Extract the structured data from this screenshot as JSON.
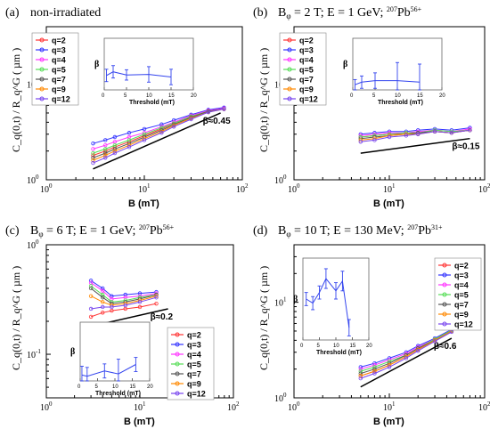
{
  "chart_data": [
    {
      "type": "line",
      "panel_label": "(a)",
      "title": "non-irradiated",
      "xlabel": "B (mT)",
      "ylabel": "C_q(0,t) / R_q^G ( µm )",
      "xscale": "log",
      "yscale": "log",
      "xlim": [
        1,
        100
      ],
      "ylim": [
        1,
        40
      ],
      "x_ticks": [
        "10^0",
        "10^1",
        "10^2"
      ],
      "y_ticks": [
        "10^0",
        "10^1"
      ],
      "legend_position": "upper-left",
      "x": [
        3,
        4,
        5,
        7,
        10,
        15,
        20,
        30,
        45,
        65
      ],
      "series": [
        {
          "name": "q=2",
          "color": "#ff3333",
          "values": [
            1.8,
            2.0,
            2.2,
            2.5,
            2.9,
            3.4,
            3.9,
            4.6,
            5.3,
            5.6
          ]
        },
        {
          "name": "q=3",
          "color": "#3333ff",
          "values": [
            2.4,
            2.6,
            2.8,
            3.1,
            3.4,
            3.8,
            4.2,
            4.8,
            5.4,
            5.7
          ]
        },
        {
          "name": "q=4",
          "color": "#ff33ff",
          "values": [
            2.1,
            2.3,
            2.5,
            2.8,
            3.1,
            3.6,
            4.0,
            4.7,
            5.3,
            5.6
          ]
        },
        {
          "name": "q=5",
          "color": "#55dd55",
          "values": [
            1.9,
            2.1,
            2.3,
            2.6,
            3.0,
            3.5,
            3.9,
            4.6,
            5.2,
            5.5
          ]
        },
        {
          "name": "q=7",
          "color": "#555555",
          "values": [
            1.7,
            1.9,
            2.1,
            2.4,
            2.8,
            3.3,
            3.8,
            4.5,
            5.2,
            5.5
          ]
        },
        {
          "name": "q=9",
          "color": "#ff8800",
          "values": [
            1.6,
            1.8,
            2.0,
            2.3,
            2.7,
            3.2,
            3.7,
            4.4,
            5.1,
            5.5
          ]
        },
        {
          "name": "q=12",
          "color": "#7744ee",
          "values": [
            1.5,
            1.7,
            1.9,
            2.2,
            2.6,
            3.1,
            3.6,
            4.3,
            5.1,
            5.5
          ]
        }
      ],
      "fit_line": {
        "x": [
          3,
          60
        ],
        "y": [
          1.3,
          5.0
        ],
        "label": "β≈0.45"
      },
      "inset": {
        "xlabel": "Threshold (mT)",
        "ylabel": "β",
        "xlim": [
          0,
          20
        ],
        "ylim": [
          0,
          1
        ],
        "x_ticks": [
          "0",
          "5",
          "10",
          "15",
          "20"
        ],
        "x": [
          0.5,
          2,
          5,
          10,
          15
        ],
        "y": [
          0.28,
          0.35,
          0.29,
          0.3,
          0.25
        ],
        "err": [
          0.12,
          0.12,
          0.1,
          0.15,
          0.15
        ]
      }
    },
    {
      "type": "line",
      "panel_label": "(b)",
      "title": "B_φ = 2 T; E = 1 GeV; 207Pb56+",
      "xlabel": "B (mT)",
      "ylabel": "C_q(0,t) / R_q^G ( µm )",
      "xscale": "log",
      "yscale": "log",
      "xlim": [
        1,
        100
      ],
      "ylim": [
        1,
        40
      ],
      "x_ticks": [
        "10^0",
        "10^1",
        "10^2"
      ],
      "y_ticks": [
        "10^0",
        "10^1"
      ],
      "legend_position": "upper-left",
      "x": [
        5,
        7,
        10,
        15,
        20,
        30,
        45,
        70
      ],
      "series": [
        {
          "name": "q=2",
          "color": "#ff3333",
          "values": [
            2.8,
            2.9,
            3.0,
            3.0,
            3.1,
            3.2,
            3.1,
            3.3
          ]
        },
        {
          "name": "q=3",
          "color": "#3333ff",
          "values": [
            3.0,
            3.1,
            3.2,
            3.2,
            3.3,
            3.4,
            3.3,
            3.5
          ]
        },
        {
          "name": "q=4",
          "color": "#ff33ff",
          "values": [
            2.9,
            3.0,
            3.1,
            3.1,
            3.2,
            3.3,
            3.2,
            3.4
          ]
        },
        {
          "name": "q=5",
          "color": "#55dd55",
          "values": [
            2.8,
            2.9,
            3.0,
            3.1,
            3.1,
            3.3,
            3.2,
            3.3
          ]
        },
        {
          "name": "q=7",
          "color": "#555555",
          "values": [
            2.7,
            2.8,
            2.9,
            3.0,
            3.1,
            3.2,
            3.1,
            3.3
          ]
        },
        {
          "name": "q=9",
          "color": "#ff8800",
          "values": [
            2.6,
            2.7,
            2.9,
            3.0,
            3.0,
            3.2,
            3.1,
            3.3
          ]
        },
        {
          "name": "q=12",
          "color": "#7744ee",
          "values": [
            2.5,
            2.6,
            2.8,
            2.9,
            3.0,
            3.2,
            3.1,
            3.3
          ]
        }
      ],
      "fit_line": {
        "x": [
          5,
          70
        ],
        "y": [
          1.9,
          2.7
        ],
        "label": "β≈0.15"
      },
      "inset": {
        "xlabel": "Threshold (mT)",
        "ylabel": "β",
        "xlim": [
          0,
          20
        ],
        "ylim": [
          0,
          1
        ],
        "x_ticks": [
          "0",
          "5",
          "10",
          "15",
          "20"
        ],
        "x": [
          0.5,
          2,
          5,
          10,
          15
        ],
        "y": [
          0.1,
          0.15,
          0.18,
          0.18,
          0.15
        ],
        "err": [
          0.1,
          0.12,
          0.15,
          0.35,
          0.35
        ]
      }
    },
    {
      "type": "line",
      "panel_label": "(c)",
      "title": "B_φ = 6 T; E = 1 GeV; 207Pb56+",
      "xlabel": "B (mT)",
      "ylabel": "C_q(0,t) / R_q^G ( µm )",
      "xscale": "log",
      "yscale": "log",
      "xlim": [
        1,
        100
      ],
      "ylim": [
        0.04,
        1
      ],
      "x_ticks": [
        "10^0",
        "10^1",
        "10^2"
      ],
      "y_ticks": [
        "10^-1"
      ],
      "legend_position": "lower-right",
      "x": [
        3,
        4,
        5,
        7,
        10,
        15
      ],
      "series": [
        {
          "name": "q=2",
          "color": "#ff3333",
          "values": [
            0.22,
            0.24,
            0.25,
            0.26,
            0.27,
            0.29
          ]
        },
        {
          "name": "q=3",
          "color": "#3333ff",
          "values": [
            0.47,
            0.4,
            0.34,
            0.35,
            0.36,
            0.37
          ]
        },
        {
          "name": "q=4",
          "color": "#ff33ff",
          "values": [
            0.45,
            0.38,
            0.32,
            0.33,
            0.34,
            0.36
          ]
        },
        {
          "name": "q=5",
          "color": "#55dd55",
          "values": [
            0.42,
            0.35,
            0.3,
            0.31,
            0.33,
            0.35
          ]
        },
        {
          "name": "q=7",
          "color": "#555555",
          "values": [
            0.4,
            0.33,
            0.29,
            0.3,
            0.32,
            0.35
          ]
        },
        {
          "name": "q=9",
          "color": "#ff8800",
          "values": [
            0.34,
            0.3,
            0.28,
            0.29,
            0.31,
            0.34
          ]
        },
        {
          "name": "q=12",
          "color": "#7744ee",
          "values": [
            0.26,
            0.27,
            0.27,
            0.28,
            0.3,
            0.33
          ]
        }
      ],
      "fit_line": {
        "x": [
          3,
          20
        ],
        "y": [
          0.18,
          0.26
        ],
        "label": "β≈0.2"
      },
      "inset": {
        "xlabel": "Threshold (mT)",
        "ylabel": "β",
        "xlim": [
          0,
          20
        ],
        "ylim": [
          0,
          1
        ],
        "x_ticks": [
          "0",
          "5",
          "10",
          "15",
          "20"
        ],
        "x": [
          0.5,
          2,
          7,
          11,
          16
        ],
        "y": [
          0.1,
          0.08,
          0.17,
          0.12,
          0.28
        ],
        "err": [
          0.15,
          0.15,
          0.12,
          0.25,
          0.12
        ]
      }
    },
    {
      "type": "line",
      "panel_label": "(d)",
      "title": "B_φ = 10 T; E = 130 MeV; 207Pb31+",
      "xlabel": "B (mT)",
      "ylabel": "C_q(0,t) / R_q^G ( µm )",
      "xscale": "log",
      "yscale": "log",
      "xlim": [
        1,
        100
      ],
      "ylim": [
        1,
        40
      ],
      "x_ticks": [
        "10^0",
        "10^1",
        "10^2"
      ],
      "y_ticks": [
        "10^0",
        "10^1"
      ],
      "legend_position": "upper-right",
      "x": [
        5,
        7,
        10,
        15,
        20,
        30,
        45
      ],
      "series": [
        {
          "name": "q=2",
          "color": "#ff3333",
          "values": [
            1.7,
            1.9,
            2.2,
            2.7,
            3.2,
            4.0,
            5.0
          ]
        },
        {
          "name": "q=3",
          "color": "#3333ff",
          "values": [
            2.1,
            2.3,
            2.6,
            3.0,
            3.5,
            4.2,
            5.2
          ]
        },
        {
          "name": "q=4",
          "color": "#ff33ff",
          "values": [
            2.0,
            2.2,
            2.5,
            2.9,
            3.4,
            4.1,
            5.1
          ]
        },
        {
          "name": "q=5",
          "color": "#55dd55",
          "values": [
            1.9,
            2.1,
            2.4,
            2.8,
            3.3,
            4.1,
            5.1
          ]
        },
        {
          "name": "q=7",
          "color": "#555555",
          "values": [
            1.8,
            2.0,
            2.3,
            2.8,
            3.3,
            4.0,
            5.0
          ]
        },
        {
          "name": "q=9",
          "color": "#ff8800",
          "values": [
            1.7,
            1.9,
            2.2,
            2.7,
            3.2,
            4.0,
            5.0
          ]
        },
        {
          "name": "q=12",
          "color": "#7744ee",
          "values": [
            1.6,
            1.8,
            2.1,
            2.6,
            3.1,
            3.9,
            4.9
          ]
        }
      ],
      "fit_line": {
        "x": [
          5,
          45
        ],
        "y": [
          1.3,
          4.2
        ],
        "label": "β≈0.6"
      },
      "inset": {
        "xlabel": "Threshold (mT)",
        "ylabel": "β",
        "xlim": [
          0,
          20
        ],
        "ylim": [
          0,
          1
        ],
        "x_ticks": [
          "0",
          "5",
          "10",
          "15",
          "20"
        ],
        "x": [
          1,
          3,
          5,
          7,
          10,
          12,
          14
        ],
        "y": [
          0.5,
          0.45,
          0.58,
          0.75,
          0.6,
          0.72,
          0.15
        ],
        "err": [
          0.08,
          0.08,
          0.08,
          0.12,
          0.1,
          0.12,
          0.1
        ]
      }
    }
  ]
}
